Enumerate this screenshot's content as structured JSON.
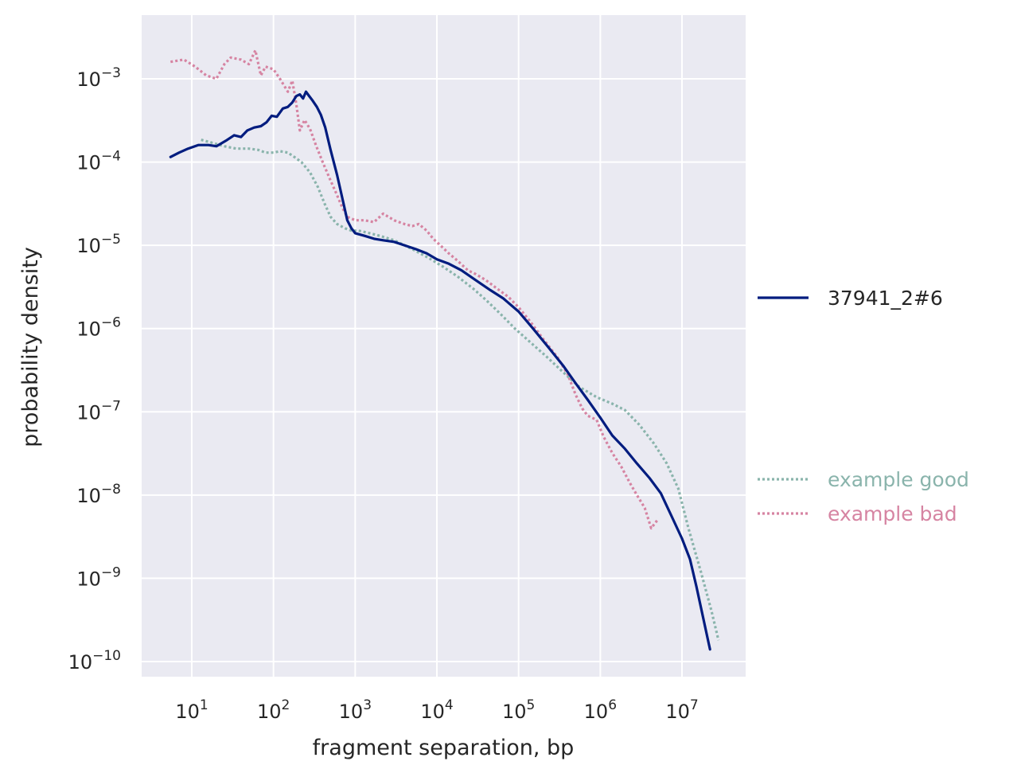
{
  "chart_data": {
    "type": "line",
    "xlabel": "fragment separation, bp",
    "ylabel": "probability density",
    "x_scale": "log",
    "y_scale": "log",
    "xlim": [
      2.5,
      60000000
    ],
    "ylim": [
      6e-11,
      0.006
    ],
    "x_ticks": [
      {
        "value": 10,
        "base": "10",
        "exp": "1"
      },
      {
        "value": 100,
        "base": "10",
        "exp": "2"
      },
      {
        "value": 1000,
        "base": "10",
        "exp": "3"
      },
      {
        "value": 10000,
        "base": "10",
        "exp": "4"
      },
      {
        "value": 100000,
        "base": "10",
        "exp": "5"
      },
      {
        "value": 1000000,
        "base": "10",
        "exp": "6"
      },
      {
        "value": 10000000,
        "base": "10",
        "exp": "7"
      }
    ],
    "y_ticks": [
      {
        "value": 0.001,
        "base": "10",
        "exp": "−3"
      },
      {
        "value": 0.0001,
        "base": "10",
        "exp": "−4"
      },
      {
        "value": 1e-05,
        "base": "10",
        "exp": "−5"
      },
      {
        "value": 1e-06,
        "base": "10",
        "exp": "−6"
      },
      {
        "value": 1e-07,
        "base": "10",
        "exp": "−7"
      },
      {
        "value": 1e-08,
        "base": "10",
        "exp": "−8"
      },
      {
        "value": 1e-09,
        "base": "10",
        "exp": "−9"
      },
      {
        "value": 1e-10,
        "base": "10",
        "exp": "−10"
      }
    ],
    "grid": true,
    "legend_placement": "right",
    "series": [
      {
        "name": "37941_2#6",
        "style": "solid",
        "color": "#001c7f",
        "legend_color": "#262626",
        "points": [
          [
            5.5,
            0.000115
          ],
          [
            7,
            0.00013
          ],
          [
            9,
            0.000145
          ],
          [
            12,
            0.00016
          ],
          [
            16,
            0.00016
          ],
          [
            20,
            0.000155
          ],
          [
            26,
            0.00018
          ],
          [
            33,
            0.00021
          ],
          [
            40,
            0.0002
          ],
          [
            48,
            0.00024
          ],
          [
            58,
            0.00026
          ],
          [
            70,
            0.00027
          ],
          [
            82,
            0.0003
          ],
          [
            95,
            0.00036
          ],
          [
            110,
            0.00035
          ],
          [
            130,
            0.00044
          ],
          [
            150,
            0.00046
          ],
          [
            170,
            0.00052
          ],
          [
            190,
            0.00062
          ],
          [
            210,
            0.00065
          ],
          [
            230,
            0.00058
          ],
          [
            250,
            0.0007
          ],
          [
            270,
            0.00063
          ],
          [
            300,
            0.00055
          ],
          [
            340,
            0.00046
          ],
          [
            380,
            0.00037
          ],
          [
            430,
            0.00026
          ],
          [
            500,
            0.00014
          ],
          [
            600,
            7e-05
          ],
          [
            700,
            3.6e-05
          ],
          [
            800,
            2e-05
          ],
          [
            900,
            1.6e-05
          ],
          [
            1000,
            1.4e-05
          ],
          [
            1300,
            1.3e-05
          ],
          [
            1700,
            1.2e-05
          ],
          [
            2200,
            1.15e-05
          ],
          [
            3000,
            1.1e-05
          ],
          [
            4000,
            1e-05
          ],
          [
            5500,
            9e-06
          ],
          [
            7500,
            8e-06
          ],
          [
            10000,
            6.8e-06
          ],
          [
            14000,
            6e-06
          ],
          [
            20000,
            5e-06
          ],
          [
            30000,
            3.8e-06
          ],
          [
            45000,
            2.9e-06
          ],
          [
            65000,
            2.3e-06
          ],
          [
            100000,
            1.6e-06
          ],
          [
            150000,
            1e-06
          ],
          [
            230000,
            6e-07
          ],
          [
            350000,
            3.6e-07
          ],
          [
            500000,
            2.2e-07
          ],
          [
            700000,
            1.4e-07
          ],
          [
            1000000,
            8.5e-08
          ],
          [
            1400000,
            5.2e-08
          ],
          [
            2000000,
            3.6e-08
          ],
          [
            2800000,
            2.4e-08
          ],
          [
            4000000,
            1.6e-08
          ],
          [
            5500000,
            1.05e-08
          ],
          [
            7500000,
            5.5e-09
          ],
          [
            10000000,
            3e-09
          ],
          [
            12500000,
            1.7e-09
          ],
          [
            15000000,
            8e-10
          ],
          [
            18000000,
            3.5e-10
          ],
          [
            22000000,
            1.4e-10
          ]
        ]
      },
      {
        "name": "example good",
        "style": "dotted",
        "color": "#8ab4ac",
        "legend_color": "#8ab4ac",
        "points": [
          [
            13,
            0.000185
          ],
          [
            18,
            0.00017
          ],
          [
            25,
            0.000155
          ],
          [
            35,
            0.000145
          ],
          [
            50,
            0.000145
          ],
          [
            65,
            0.00014
          ],
          [
            80,
            0.00013
          ],
          [
            100,
            0.00013
          ],
          [
            120,
            0.000135
          ],
          [
            150,
            0.00013
          ],
          [
            180,
            0.000115
          ],
          [
            220,
            0.0001
          ],
          [
            280,
            7.5e-05
          ],
          [
            350,
            5e-05
          ],
          [
            420,
            3.2e-05
          ],
          [
            500,
            2.2e-05
          ],
          [
            600,
            1.8e-05
          ],
          [
            750,
            1.6e-05
          ],
          [
            900,
            1.5e-05
          ],
          [
            1100,
            1.5e-05
          ],
          [
            1500,
            1.4e-05
          ],
          [
            2000,
            1.3e-05
          ],
          [
            3000,
            1.15e-05
          ],
          [
            5000,
            9e-06
          ],
          [
            8000,
            7e-06
          ],
          [
            12000,
            5.5e-06
          ],
          [
            18000,
            4.2e-06
          ],
          [
            28000,
            3e-06
          ],
          [
            40000,
            2.2e-06
          ],
          [
            60000,
            1.5e-06
          ],
          [
            90000,
            1e-06
          ],
          [
            140000,
            6.8e-07
          ],
          [
            220000,
            4.6e-07
          ],
          [
            350000,
            3e-07
          ],
          [
            550000,
            2e-07
          ],
          [
            900000,
            1.5e-07
          ],
          [
            1400000,
            1.25e-07
          ],
          [
            2000000,
            1.05e-07
          ],
          [
            3000000,
            7e-08
          ],
          [
            4500000,
            4.2e-08
          ],
          [
            6500000,
            2.4e-08
          ],
          [
            9000000,
            1.2e-08
          ],
          [
            12000000,
            4e-09
          ],
          [
            17000000,
            1.2e-09
          ],
          [
            23000000,
            4e-10
          ],
          [
            28000000,
            1.8e-10
          ]
        ]
      },
      {
        "name": "example bad",
        "style": "dotted",
        "color": "#d684a2",
        "legend_color": "#d684a2",
        "points": [
          [
            5.5,
            0.0016
          ],
          [
            8,
            0.0017
          ],
          [
            11,
            0.0014
          ],
          [
            15,
            0.0011
          ],
          [
            20,
            0.001
          ],
          [
            25,
            0.0015
          ],
          [
            30,
            0.0018
          ],
          [
            40,
            0.0017
          ],
          [
            50,
            0.0015
          ],
          [
            60,
            0.0022
          ],
          [
            70,
            0.0011
          ],
          [
            80,
            0.0014
          ],
          [
            100,
            0.0013
          ],
          [
            120,
            0.001
          ],
          [
            150,
            0.0007
          ],
          [
            170,
            0.00095
          ],
          [
            190,
            0.0005
          ],
          [
            210,
            0.00024
          ],
          [
            240,
            0.00032
          ],
          [
            280,
            0.00025
          ],
          [
            330,
            0.00016
          ],
          [
            400,
            0.0001
          ],
          [
            500,
            6e-05
          ],
          [
            600,
            4e-05
          ],
          [
            700,
            2.8e-05
          ],
          [
            800,
            2.2e-05
          ],
          [
            1000,
            2e-05
          ],
          [
            1300,
            2e-05
          ],
          [
            1700,
            1.9e-05
          ],
          [
            2200,
            2.4e-05
          ],
          [
            3000,
            2e-05
          ],
          [
            4000,
            1.8e-05
          ],
          [
            5000,
            1.7e-05
          ],
          [
            6000,
            1.8e-05
          ],
          [
            7500,
            1.5e-05
          ],
          [
            9000,
            1.2e-05
          ],
          [
            11000,
            1e-05
          ],
          [
            14000,
            8e-06
          ],
          [
            18000,
            6.5e-06
          ],
          [
            24000,
            5e-06
          ],
          [
            30000,
            4.5e-06
          ],
          [
            40000,
            3.8e-06
          ],
          [
            55000,
            3e-06
          ],
          [
            75000,
            2.4e-06
          ],
          [
            100000,
            1.8e-06
          ],
          [
            140000,
            1.2e-06
          ],
          [
            200000,
            7.5e-07
          ],
          [
            300000,
            4.5e-07
          ],
          [
            400000,
            2.8e-07
          ],
          [
            500000,
            1.6e-07
          ],
          [
            600000,
            1.1e-07
          ],
          [
            700000,
            9e-08
          ],
          [
            900000,
            8e-08
          ],
          [
            1100000,
            5e-08
          ],
          [
            1400000,
            3.2e-08
          ],
          [
            1800000,
            2.2e-08
          ],
          [
            2300000,
            1.4e-08
          ],
          [
            2800000,
            1e-08
          ],
          [
            3500000,
            7e-09
          ],
          [
            4200000,
            4e-09
          ],
          [
            5000000,
            5e-09
          ]
        ]
      }
    ]
  }
}
